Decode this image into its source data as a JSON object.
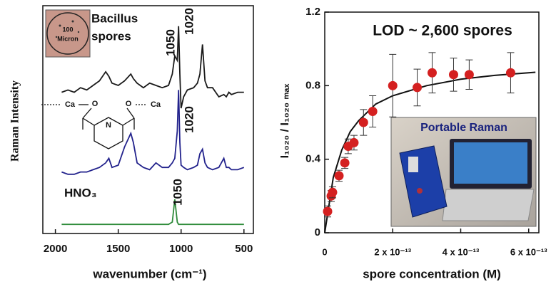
{
  "chart_data": [
    {
      "type": "line",
      "x_label": "wavenumber (cm⁻¹)",
      "y_label": "Raman Intensity",
      "xlim": [
        2100,
        425
      ],
      "ylim": [
        0,
        100
      ],
      "xticks": [
        2000,
        1500,
        1000,
        500
      ],
      "x": [
        1950,
        1900,
        1850,
        1800,
        1750,
        1700,
        1650,
        1600,
        1575,
        1550,
        1500,
        1450,
        1400,
        1380,
        1350,
        1300,
        1250,
        1200,
        1150,
        1100,
        1070,
        1050,
        1030,
        1020,
        1010,
        1000,
        980,
        950,
        900,
        870,
        850,
        830,
        810,
        790,
        750,
        700,
        660,
        640,
        620,
        600,
        550,
        500
      ],
      "series": [
        {
          "color": "#1a1a1a",
          "values": [
            62,
            63,
            62,
            64,
            63,
            65,
            67,
            71,
            69,
            66,
            65,
            67,
            70,
            68,
            66,
            64,
            66,
            65,
            64,
            65,
            70,
            78,
            76,
            91,
            70,
            55,
            60,
            63,
            64,
            66,
            70,
            83,
            67,
            64,
            64,
            60,
            61,
            60,
            62,
            61,
            62,
            62
          ]
        },
        {
          "color": "#22228c",
          "values": [
            27,
            26,
            26,
            27,
            27,
            28,
            29,
            31,
            33,
            29,
            30,
            38,
            44,
            40,
            31,
            29,
            28,
            31,
            29,
            29,
            31,
            33,
            45,
            63,
            40,
            30,
            29,
            28,
            29,
            30,
            35,
            37,
            31,
            29,
            28,
            29,
            33,
            29,
            29,
            28,
            28,
            29
          ]
        },
        {
          "color": "#2e8b3a",
          "values": [
            4,
            4,
            4,
            4,
            4,
            4,
            4,
            4,
            4,
            4,
            4,
            4,
            4,
            4,
            4,
            4,
            4,
            4,
            4,
            4,
            5,
            15,
            5,
            4,
            4,
            4,
            4,
            4,
            4,
            4,
            4,
            4,
            4,
            4,
            4,
            4,
            4,
            4,
            4,
            4,
            4,
            4
          ]
        }
      ],
      "annotations": [
        "Bacillus",
        "spores",
        "1050",
        "1020",
        "1020",
        "1050",
        "HNO₃",
        "100",
        "Micron"
      ],
      "structure_labels": [
        "Ca",
        "Ca",
        "O",
        "O",
        "N"
      ]
    },
    {
      "type": "scatter",
      "x_label": "spore concentration (M)",
      "y_label": "I₁₀₂₀ / I₁₀₂₀ ₘₐₓ",
      "annotation": "LOD ~ 2,600 spores",
      "inset_label": "Portable Raman",
      "xlim": [
        0,
        6.3e-13
      ],
      "ylim": [
        0,
        1.2
      ],
      "xticks": [
        0,
        {
          "value": 2e-13,
          "label": "2 x 10⁻¹³"
        },
        {
          "value": 4e-13,
          "label": "4 x 10⁻¹³"
        },
        {
          "value": 6e-13,
          "label": "6 x 10⁻¹³"
        }
      ],
      "yticks": [
        0,
        0.4,
        0.8,
        1.2
      ],
      "series": [
        {
          "color": "#d42020",
          "x": [
            8.4e-15,
            1.9e-14,
            2.3e-14,
            4.2e-14,
            5.9e-14,
            6.9e-14,
            8.6e-14,
            1.14e-13,
            1.41e-13,
            2e-13,
            2.72e-13,
            3.16e-13,
            3.79e-13,
            4.25e-13,
            5.47e-13
          ],
          "values": [
            0.116,
            0.2,
            0.22,
            0.31,
            0.38,
            0.47,
            0.49,
            0.6,
            0.66,
            0.8,
            0.79,
            0.87,
            0.86,
            0.86,
            0.87
          ],
          "errors": [
            0.03,
            0.03,
            0.03,
            0.03,
            0.03,
            0.04,
            0.04,
            0.07,
            0.085,
            0.17,
            0.1,
            0.11,
            0.09,
            0.08,
            0.11
          ]
        },
        {
          "color": "#111111",
          "x": [
            0,
            2.5e-14,
            5e-14,
            7.5e-14,
            1e-13,
            1.5e-13,
            2e-13,
            3e-13,
            4e-13,
            5e-13,
            6.2e-13
          ],
          "values": [
            0,
            0.3,
            0.45,
            0.55,
            0.61,
            0.7,
            0.745,
            0.8,
            0.835,
            0.856,
            0.873
          ]
        }
      ]
    }
  ]
}
